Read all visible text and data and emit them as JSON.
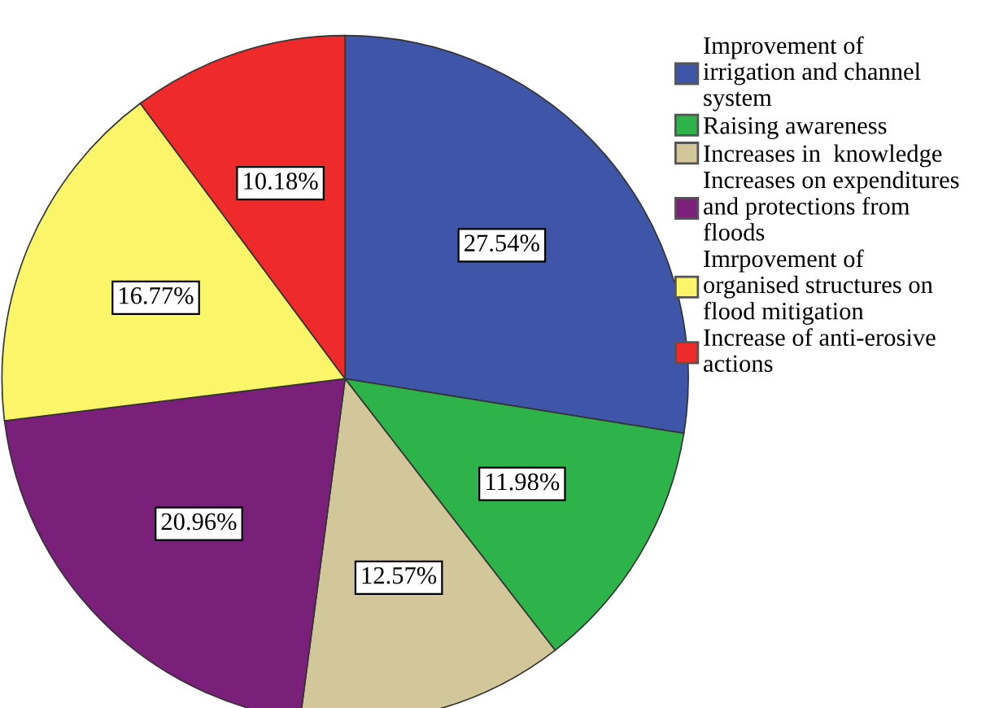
{
  "chart_data": {
    "type": "pie",
    "categories": [
      "Improvement of\nirrigation and channel\nsystem",
      "Raising awareness",
      "Increases in  knowledge",
      "Increases on expenditures\nand protections from\nfloods",
      "Imrpovement of\norganised structures on\nflood mitigation",
      "Increase of anti-erosive\nactions"
    ],
    "values": [
      27.54,
      11.98,
      12.57,
      20.96,
      16.77,
      10.18
    ],
    "colors": [
      "#3f56a8",
      "#2db34a",
      "#d2c79a",
      "#7a1f7a",
      "#fbf56a",
      "#ee2a2a"
    ],
    "value_labels": [
      "27.54%",
      "11.98%",
      "12.57%",
      "20.96%",
      "16.77%",
      "10.18%"
    ],
    "legend": "right"
  }
}
